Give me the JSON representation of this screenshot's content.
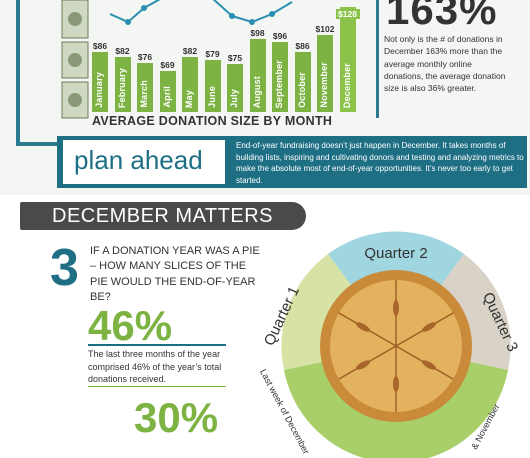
{
  "top": {
    "chart_title": "AVERAGE DONATION SIZE BY MONTH",
    "big_stat": "163%",
    "stat_description": "Not only is the # of donations in December 163% more than the average monthly online donations, the average donation size is also 36% greater."
  },
  "chart_data": {
    "type": "bar",
    "title": "AVERAGE DONATION SIZE BY MONTH",
    "categories": [
      "January",
      "February",
      "March",
      "April",
      "May",
      "June",
      "July",
      "August",
      "September",
      "October",
      "November",
      "December"
    ],
    "series": [
      {
        "values": [
          86,
          82,
          76,
          69,
          82,
          79,
          75,
          98,
          96,
          86,
          102,
          128
        ],
        "value_labels": [
          "$86",
          "$82",
          "$76",
          "$69",
          "$82",
          "$79",
          "$75",
          "$98",
          "$96",
          "$86",
          "$102",
          "$128"
        ]
      }
    ],
    "colors": {
      "bar": "#7cb342",
      "line": "#2b8fb0"
    }
  },
  "plan": {
    "title": "plan ahead",
    "text": "End-of-year fundraising doesn’t just happen in December. It takes months of building lists, inspiring and cultivating donors and testing and analyzing metrics to make the absolute most of end-of-year opportunities. It’s never too early to get started."
  },
  "december": {
    "banner": "DECEMBER MATTERS",
    "number": "3",
    "question": "IF A DONATION YEAR WAS A PIE – HOW MANY SLICES OF THE PIE WOULD THE END-OF-YEAR BE?",
    "stat1": "46%",
    "stat1_desc": "The last three months of the year comprised 46% of the year’s total donations received.",
    "stat2": "30%"
  },
  "pie": {
    "labels": [
      "Quarter 1",
      "Quarter 2",
      "Quarter 3",
      "Last week of December",
      "& November"
    ],
    "colors": {
      "q1": "#d7e3a5",
      "q2": "#9fd6e0",
      "q3": "#d9d2c6",
      "q4": "#a8cf6a",
      "crust": "#d9a04a"
    }
  }
}
